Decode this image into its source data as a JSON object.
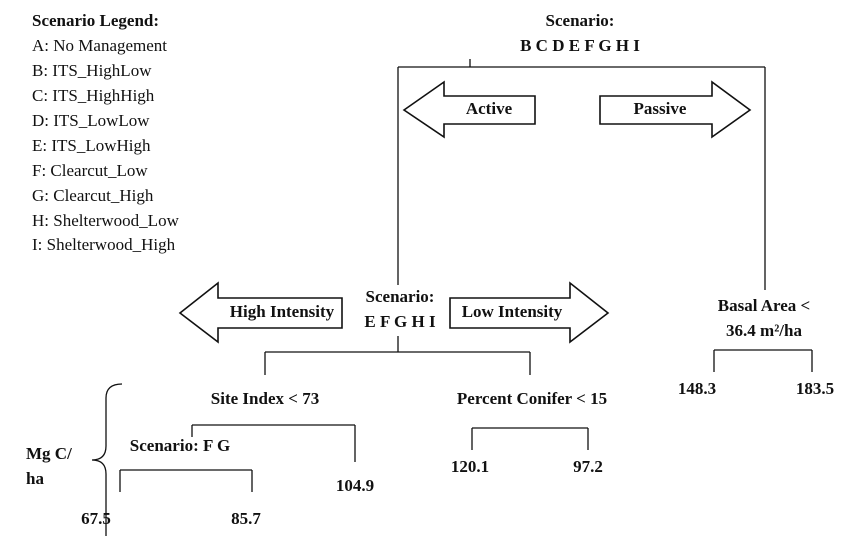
{
  "legend": {
    "title": "Scenario Legend:",
    "items": [
      "A: No Management",
      "B: ITS_HighLow",
      "C: ITS_HighHigh",
      "D: ITS_LowLow",
      "E: ITS_LowHigh",
      "F: Clearcut_Low",
      "G: Clearcut_High",
      "H: Shelterwood_Low",
      "I: Shelterwood_High"
    ]
  },
  "root": {
    "label": "Scenario:",
    "scenarios": "B C D E F G H I",
    "left_arrow": "Active",
    "right_arrow": "Passive"
  },
  "active_node": {
    "label": "Scenario:",
    "scenarios": "E F G H I",
    "left_arrow": "High Intensity",
    "right_arrow": "Low Intensity"
  },
  "site_index": {
    "label": "Site Index < 73",
    "right_leaf": "104.9"
  },
  "scenario_fg": {
    "label": "Scenario: F G",
    "left_leaf": "67.5",
    "right_leaf": "85.7"
  },
  "percent_conifer": {
    "label": "Percent Conifer < 15",
    "left_leaf": "120.1",
    "right_leaf": "97.2"
  },
  "basal_area": {
    "label": "Basal Area <",
    "threshold": "36.4 m²/ha",
    "left_leaf": "148.3",
    "right_leaf": "183.5"
  },
  "unit": {
    "line1": "Mg C/",
    "line2": "ha"
  }
}
